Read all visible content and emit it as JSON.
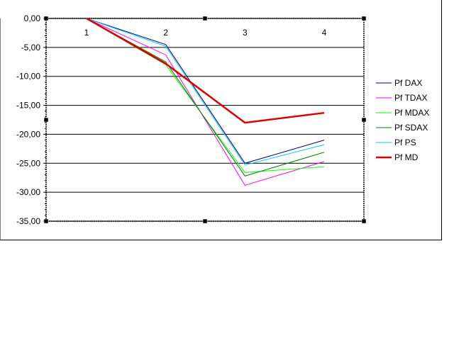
{
  "chart_data": {
    "type": "line",
    "x": [
      "1",
      "2",
      "3",
      "4"
    ],
    "y_ticks": [
      "0,00",
      "-5,00",
      "-10,00",
      "-15,00",
      "-20,00",
      "-25,00",
      "-30,00",
      "-35,00"
    ],
    "ylim": [
      -35,
      0
    ],
    "grid": true,
    "legend_position": "right",
    "series": [
      {
        "name": "Pf DAX",
        "color": "#000080",
        "values": [
          0,
          -4.5,
          -25.0,
          -21.0
        ]
      },
      {
        "name": "Pf TDAX",
        "color": "#ff00ff",
        "values": [
          0,
          -6.3,
          -28.8,
          -24.7
        ]
      },
      {
        "name": "Pf MDAX",
        "color": "#00ff00",
        "values": [
          0,
          -8.0,
          -26.6,
          -25.6
        ]
      },
      {
        "name": "Pf SDAX",
        "color": "#008000",
        "values": [
          0,
          -7.5,
          -27.2,
          -23.1
        ]
      },
      {
        "name": "Pf PS",
        "color": "#00ccff",
        "values": [
          0,
          -4.8,
          -25.3,
          -21.8
        ]
      },
      {
        "name": "Pf MD",
        "color": "#dd0000",
        "values": [
          0,
          -7.8,
          -18.0,
          -16.3
        ]
      }
    ]
  }
}
